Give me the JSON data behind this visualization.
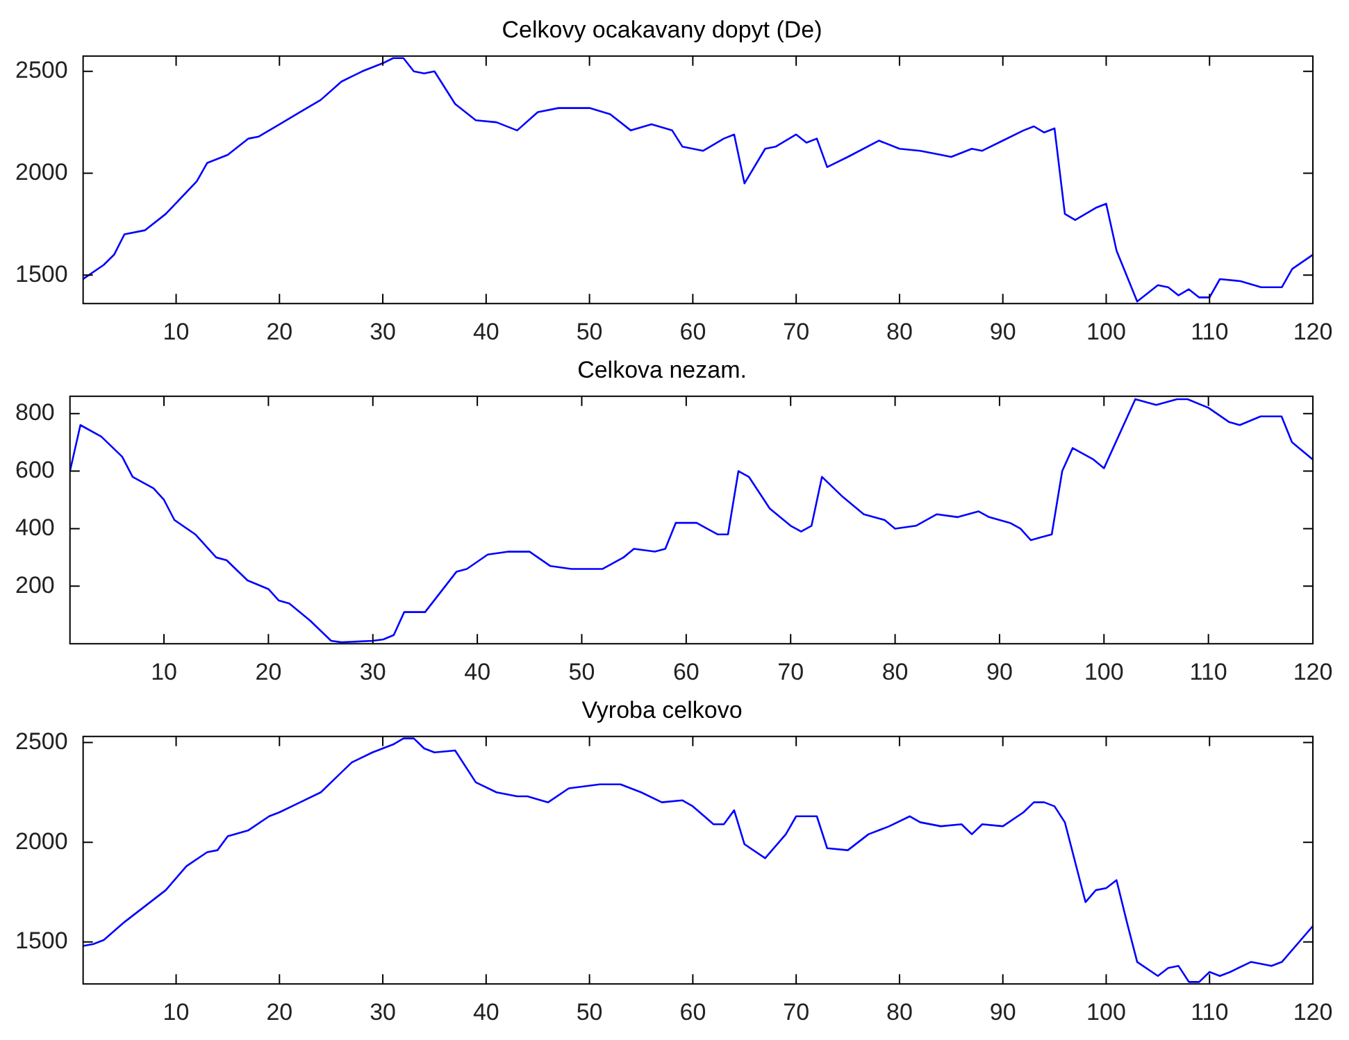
{
  "chart_data": [
    {
      "type": "line",
      "title": "Celkovy ocakavany dopyt (De)",
      "color": "#0000ff",
      "xlim": [
        1,
        120
      ],
      "xticks": [
        10,
        20,
        30,
        40,
        50,
        60,
        70,
        80,
        90,
        100,
        110,
        120
      ],
      "ylim": [
        1360,
        2575
      ],
      "yticks": [
        1500,
        2000,
        2500
      ],
      "x": [
        1,
        3,
        4,
        5,
        7,
        9,
        12,
        13,
        15,
        17,
        18,
        20,
        22,
        24,
        26,
        28,
        30,
        31,
        32,
        33,
        34,
        35,
        37,
        39,
        41,
        43,
        45,
        47,
        50,
        52,
        54,
        56,
        58,
        59,
        61,
        63,
        64,
        65,
        67,
        68,
        70,
        71,
        72,
        73,
        75,
        78,
        80,
        82,
        84,
        85,
        87,
        88,
        90,
        92,
        93,
        94,
        95,
        96,
        97,
        99,
        100,
        101,
        103,
        105,
        106,
        107,
        108,
        109,
        110,
        111,
        113,
        115,
        117,
        118,
        120
      ],
      "values": [
        1480,
        1550,
        1600,
        1700,
        1720,
        1800,
        1960,
        2050,
        2090,
        2170,
        2180,
        2240,
        2300,
        2360,
        2450,
        2500,
        2540,
        2565,
        2565,
        2500,
        2490,
        2500,
        2340,
        2260,
        2250,
        2210,
        2300,
        2320,
        2320,
        2290,
        2210,
        2240,
        2210,
        2130,
        2110,
        2170,
        2190,
        1950,
        2120,
        2130,
        2190,
        2150,
        2170,
        2030,
        2080,
        2160,
        2120,
        2110,
        2090,
        2080,
        2120,
        2110,
        2160,
        2210,
        2230,
        2200,
        2220,
        1800,
        1770,
        1830,
        1850,
        1620,
        1370,
        1450,
        1440,
        1400,
        1430,
        1390,
        1390,
        1480,
        1470,
        1440,
        1440,
        1530,
        1600
      ]
    },
    {
      "type": "line",
      "title": "Celkova nezam.",
      "color": "#0000ff",
      "xlim": [
        1,
        120
      ],
      "xticks": [
        10,
        20,
        30,
        40,
        50,
        60,
        70,
        80,
        90,
        100,
        110,
        120
      ],
      "ylim": [
        0,
        860
      ],
      "yticks": [
        200,
        400,
        600,
        800
      ],
      "x": [
        1,
        2,
        4,
        6,
        7,
        9,
        10,
        11,
        13,
        15,
        16,
        18,
        20,
        21,
        22,
        24,
        26,
        27,
        30,
        31,
        32,
        33,
        35,
        38,
        39,
        41,
        43,
        45,
        47,
        49,
        52,
        54,
        55,
        57,
        58,
        59,
        61,
        63,
        64,
        65,
        66,
        68,
        70,
        71,
        72,
        73,
        75,
        77,
        79,
        80,
        82,
        84,
        86,
        88,
        89,
        91,
        92,
        93,
        94,
        95,
        96,
        97,
        99,
        100,
        103,
        105,
        107,
        108,
        110,
        112,
        113,
        115,
        117,
        118,
        120
      ],
      "values": [
        600,
        760,
        720,
        650,
        580,
        540,
        500,
        430,
        380,
        300,
        290,
        220,
        190,
        150,
        140,
        80,
        10,
        5,
        10,
        15,
        30,
        110,
        110,
        250,
        260,
        310,
        320,
        320,
        270,
        260,
        260,
        300,
        330,
        320,
        330,
        420,
        420,
        380,
        380,
        600,
        580,
        470,
        410,
        390,
        410,
        580,
        510,
        450,
        430,
        400,
        410,
        450,
        440,
        460,
        440,
        420,
        400,
        360,
        370,
        380,
        600,
        680,
        640,
        610,
        850,
        830,
        850,
        850,
        820,
        770,
        760,
        790,
        790,
        700,
        640
      ]
    },
    {
      "type": "line",
      "title": "Vyroba celkovo",
      "color": "#0000ff",
      "xlim": [
        1,
        120
      ],
      "xticks": [
        10,
        20,
        30,
        40,
        50,
        60,
        70,
        80,
        90,
        100,
        110,
        120
      ],
      "ylim": [
        1290,
        2530
      ],
      "yticks": [
        1500,
        2000,
        2500
      ],
      "x": [
        1,
        2,
        3,
        5,
        7,
        9,
        11,
        13,
        14,
        15,
        17,
        19,
        20,
        22,
        24,
        25,
        27,
        29,
        31,
        32,
        33,
        34,
        35,
        37,
        39,
        41,
        43,
        44,
        46,
        48,
        51,
        53,
        55,
        57,
        59,
        60,
        62,
        63,
        64,
        65,
        67,
        69,
        70,
        72,
        73,
        75,
        77,
        79,
        81,
        82,
        84,
        86,
        87,
        88,
        90,
        92,
        93,
        94,
        95,
        96,
        98,
        99,
        100,
        101,
        102,
        103,
        105,
        106,
        107,
        108,
        109,
        110,
        111,
        112,
        114,
        116,
        117,
        120
      ],
      "values": [
        1480,
        1490,
        1510,
        1600,
        1680,
        1760,
        1880,
        1950,
        1960,
        2030,
        2060,
        2130,
        2150,
        2200,
        2250,
        2300,
        2400,
        2450,
        2490,
        2520,
        2520,
        2470,
        2450,
        2460,
        2300,
        2250,
        2230,
        2230,
        2200,
        2270,
        2290,
        2290,
        2250,
        2200,
        2210,
        2180,
        2090,
        2090,
        2160,
        1990,
        1920,
        2040,
        2130,
        2130,
        1970,
        1960,
        2040,
        2080,
        2130,
        2100,
        2080,
        2090,
        2040,
        2090,
        2080,
        2150,
        2200,
        2200,
        2180,
        2100,
        1700,
        1760,
        1770,
        1810,
        1600,
        1400,
        1330,
        1370,
        1380,
        1300,
        1300,
        1350,
        1330,
        1350,
        1400,
        1380,
        1400,
        1580
      ]
    }
  ]
}
